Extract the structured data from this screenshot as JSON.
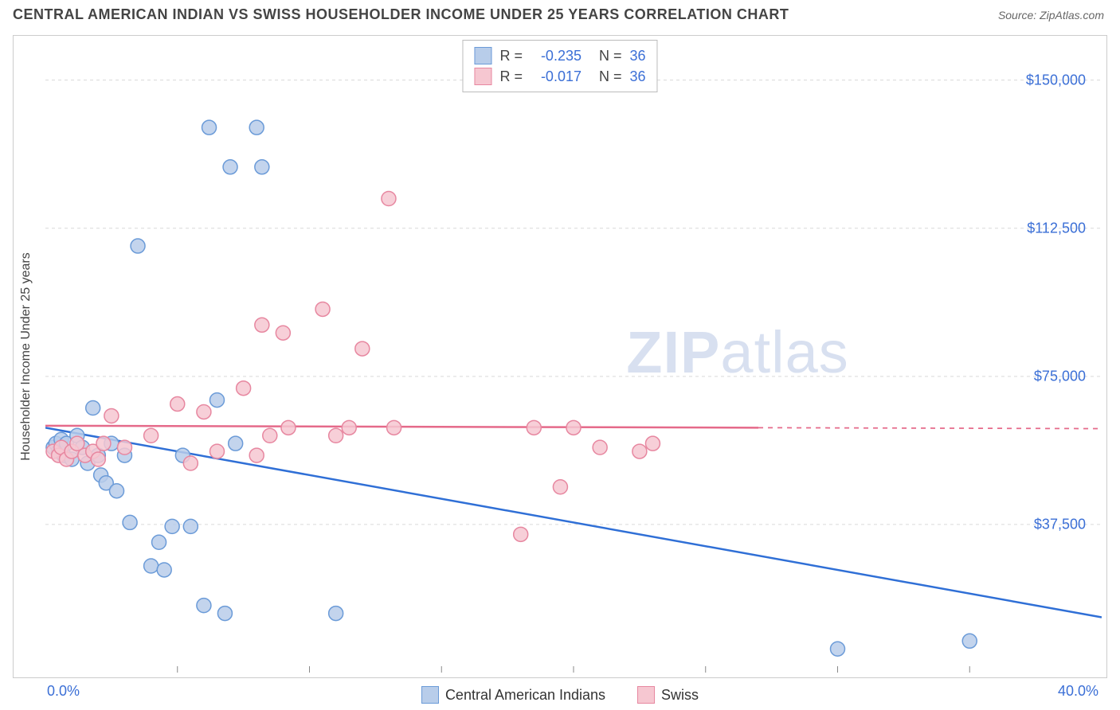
{
  "title": "CENTRAL AMERICAN INDIAN VS SWISS HOUSEHOLDER INCOME UNDER 25 YEARS CORRELATION CHART",
  "source": "Source: ZipAtlas.com",
  "ylabel": "Householder Income Under 25 years",
  "watermark": {
    "bold": "ZIP",
    "rest": "atlas"
  },
  "chart": {
    "type": "scatter",
    "background_color": "#ffffff",
    "border_color": "#cccccc",
    "grid_color": "#d9d9d9",
    "grid_dash": "4,4",
    "xlim": [
      0,
      40
    ],
    "ylim": [
      0,
      160000
    ],
    "x_ticks": [
      0,
      40
    ],
    "x_tick_labels": [
      "0.0%",
      "40.0%"
    ],
    "x_minor_ticks": [
      5,
      10,
      15,
      20,
      25,
      30,
      35
    ],
    "y_ticks": [
      37500,
      75000,
      112500,
      150000
    ],
    "y_tick_labels": [
      "$37,500",
      "$75,000",
      "$112,500",
      "$150,000"
    ],
    "tick_label_color": "#3b6fd6",
    "tick_label_fontsize": 18,
    "marker_radius": 9,
    "marker_stroke_width": 1.5,
    "line_width": 2.5,
    "series": [
      {
        "name": "Central American Indians",
        "fill": "#b8cdea",
        "stroke": "#6b9bd8",
        "line_color": "#2f6fd6",
        "R": "-0.235",
        "N": "36",
        "trend": {
          "y0": 62000,
          "x1": 40,
          "y1": 14000,
          "solid_until": 40
        },
        "points": [
          [
            0.3,
            57000
          ],
          [
            0.4,
            58000
          ],
          [
            0.5,
            56000
          ],
          [
            0.6,
            59000
          ],
          [
            0.7,
            55000
          ],
          [
            0.8,
            58000
          ],
          [
            1.0,
            54000
          ],
          [
            1.2,
            60000
          ],
          [
            1.4,
            57000
          ],
          [
            1.6,
            53000
          ],
          [
            1.8,
            67000
          ],
          [
            2.0,
            55000
          ],
          [
            2.1,
            50000
          ],
          [
            2.3,
            48000
          ],
          [
            2.5,
            58000
          ],
          [
            2.7,
            46000
          ],
          [
            3.0,
            55000
          ],
          [
            3.2,
            38000
          ],
          [
            3.5,
            108000
          ],
          [
            4.0,
            27000
          ],
          [
            4.3,
            33000
          ],
          [
            4.5,
            26000
          ],
          [
            4.8,
            37000
          ],
          [
            5.2,
            55000
          ],
          [
            5.5,
            37000
          ],
          [
            6.0,
            17000
          ],
          [
            6.2,
            138000
          ],
          [
            6.5,
            69000
          ],
          [
            6.8,
            15000
          ],
          [
            7.0,
            128000
          ],
          [
            7.2,
            58000
          ],
          [
            8.0,
            138000
          ],
          [
            8.2,
            128000
          ],
          [
            11.0,
            15000
          ],
          [
            30.0,
            6000
          ],
          [
            35.0,
            8000
          ]
        ]
      },
      {
        "name": "Swiss",
        "fill": "#f6c7d1",
        "stroke": "#e787a0",
        "line_color": "#e56a8a",
        "R": "-0.017",
        "N": "36",
        "trend": {
          "y0": 62500,
          "x1": 27,
          "y1": 62000,
          "solid_until": 27,
          "dash_to": 40
        },
        "points": [
          [
            0.3,
            56000
          ],
          [
            0.5,
            55000
          ],
          [
            0.6,
            57000
          ],
          [
            0.8,
            54000
          ],
          [
            1.0,
            56000
          ],
          [
            1.2,
            58000
          ],
          [
            1.5,
            55000
          ],
          [
            1.8,
            56000
          ],
          [
            2.0,
            54000
          ],
          [
            2.2,
            58000
          ],
          [
            2.5,
            65000
          ],
          [
            3.0,
            57000
          ],
          [
            4.0,
            60000
          ],
          [
            5.0,
            68000
          ],
          [
            5.5,
            53000
          ],
          [
            6.0,
            66000
          ],
          [
            6.5,
            56000
          ],
          [
            7.5,
            72000
          ],
          [
            8.0,
            55000
          ],
          [
            8.2,
            88000
          ],
          [
            8.5,
            60000
          ],
          [
            9.0,
            86000
          ],
          [
            9.2,
            62000
          ],
          [
            10.5,
            92000
          ],
          [
            11.0,
            60000
          ],
          [
            11.5,
            62000
          ],
          [
            12.0,
            82000
          ],
          [
            13.0,
            120000
          ],
          [
            13.2,
            62000
          ],
          [
            18.0,
            35000
          ],
          [
            18.5,
            62000
          ],
          [
            19.5,
            47000
          ],
          [
            20.0,
            62000
          ],
          [
            21.0,
            57000
          ],
          [
            22.5,
            56000
          ],
          [
            23.0,
            58000
          ]
        ]
      }
    ]
  },
  "legend_bottom": [
    {
      "label": "Central American Indians",
      "fill": "#b8cdea",
      "stroke": "#6b9bd8"
    },
    {
      "label": "Swiss",
      "fill": "#f6c7d1",
      "stroke": "#e787a0"
    }
  ]
}
